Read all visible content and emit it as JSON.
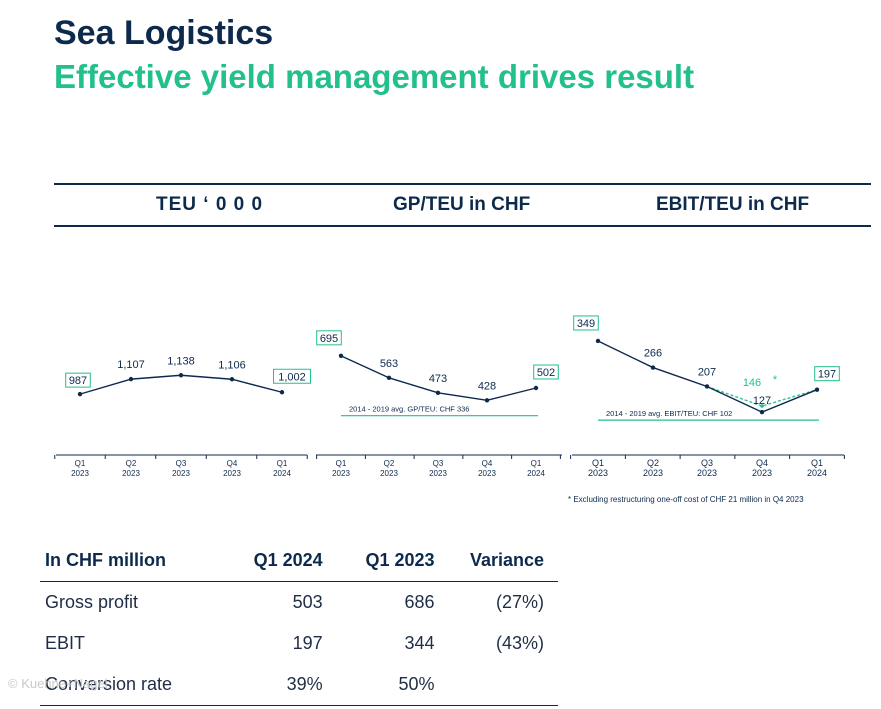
{
  "header": {
    "title": "Sea Logistics",
    "subtitle": "Effective yield management drives result"
  },
  "column_headers": {
    "teu": "TEU ‘ 0 0 0",
    "gp": "GP/TEU in CHF",
    "ebit": "EBIT/TEU in CHF"
  },
  "chart_data": [
    {
      "type": "line",
      "title": "TEU ‘ 0 0 0",
      "categories": [
        "Q1 2023",
        "Q2 2023",
        "Q3 2023",
        "Q4 2023",
        "Q1 2024"
      ],
      "values": [
        987,
        1107,
        1138,
        1106,
        1002
      ],
      "labels": [
        "987",
        "1,107",
        "1,138",
        "1,106",
        "1,002"
      ],
      "boxed": [
        true,
        false,
        false,
        false,
        true
      ],
      "color": "#0d2a4d",
      "ylim": [
        700,
        1500
      ]
    },
    {
      "type": "line",
      "title": "GP/TEU in CHF",
      "categories": [
        "Q1 2023",
        "Q2 2023",
        "Q3 2023",
        "Q4 2023",
        "Q1 2024"
      ],
      "values": [
        695,
        563,
        473,
        428,
        502
      ],
      "labels": [
        "695",
        "563",
        "473",
        "428",
        "502"
      ],
      "boxed": [
        true,
        false,
        false,
        false,
        true
      ],
      "color": "#0d2a4d",
      "ylim": [
        250,
        850
      ],
      "reference": {
        "value": 336,
        "label": "2014 - 2019 avg. GP/TEU: CHF 336",
        "color": "#22c08a"
      }
    },
    {
      "type": "line",
      "title": "EBIT/TEU in CHF",
      "categories": [
        "Q1 2023",
        "Q2 2023",
        "Q3 2023",
        "Q4 2023",
        "Q1 2024"
      ],
      "values": [
        349,
        266,
        207,
        127,
        197
      ],
      "labels": [
        "349",
        "266",
        "207",
        "127",
        "197"
      ],
      "boxed": [
        true,
        false,
        false,
        false,
        true
      ],
      "color": "#0d2a4d",
      "ylim": [
        40,
        430
      ],
      "reference": {
        "value": 102,
        "label": "2014 - 2019 avg. EBIT/TEU: CHF 102",
        "color": "#22c08a"
      },
      "adjusted_series": {
        "name": "Excluding restructuring",
        "values": [
          null,
          null,
          207,
          146,
          197
        ],
        "highlight_label": "146",
        "marker": "*",
        "color": "#22c08a",
        "style": "dashed"
      }
    }
  ],
  "footnote": "* Excluding restructuring one-off cost of CHF 21 million in Q4 2023",
  "table": {
    "headers": [
      "In CHF million",
      "Q1 2024",
      "Q1 2023",
      "Variance"
    ],
    "rows": [
      [
        "Gross profit",
        "503",
        "686",
        "(27%)"
      ],
      [
        "EBIT",
        "197",
        "344",
        "(43%)"
      ],
      [
        "Conversion rate",
        "39%",
        "50%",
        ""
      ]
    ]
  },
  "watermark": "© Kuehne+Nagel"
}
